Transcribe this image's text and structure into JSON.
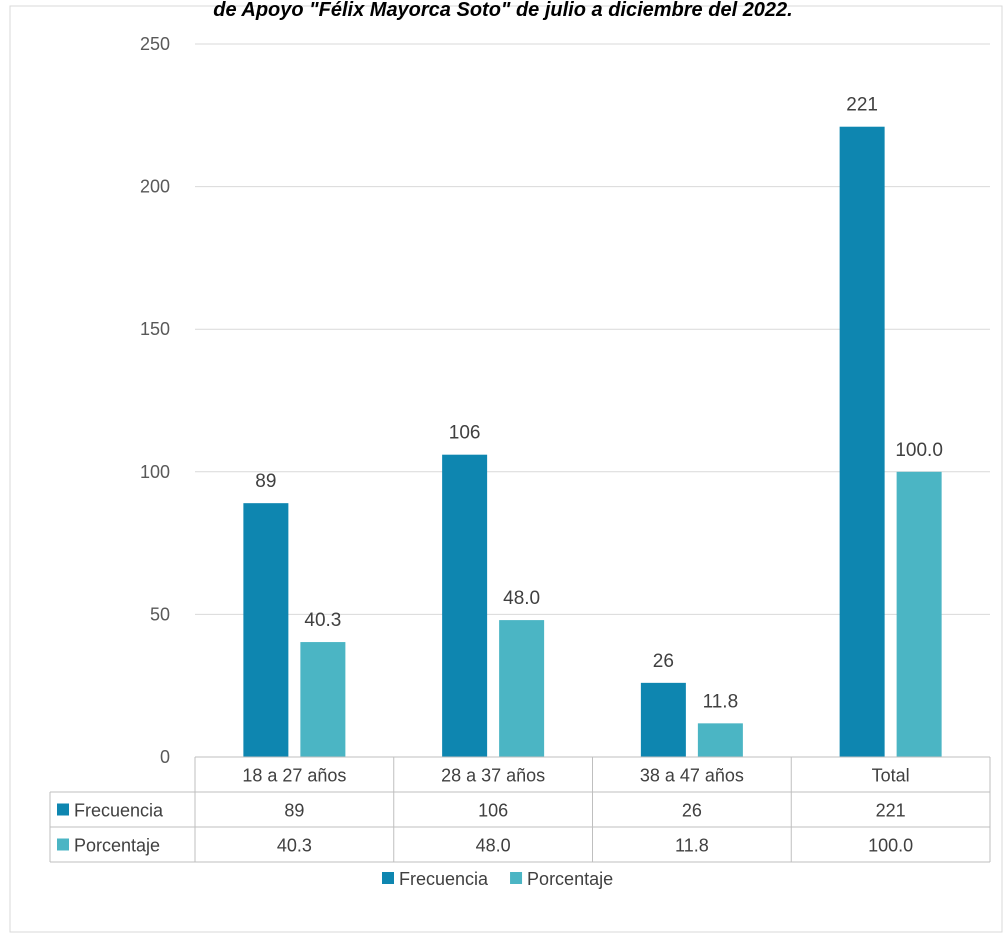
{
  "chart_data": {
    "type": "bar",
    "title": "de Apoyo \"Félix Mayorca Soto\" de julio a diciembre del 2022.",
    "categories": [
      "18 a 27 años",
      "28 a 37 años",
      "38 a 47 años",
      "Total"
    ],
    "series": [
      {
        "name": "Frecuencia",
        "values": [
          89,
          106,
          26,
          221
        ],
        "labels": [
          "89",
          "106",
          "26",
          "221"
        ],
        "color": "#0e86b0"
      },
      {
        "name": "Porcentaje",
        "values": [
          40.3,
          48.0,
          11.8,
          100.0
        ],
        "labels": [
          "40.3",
          "48.0",
          "11.8",
          "100.0"
        ],
        "color": "#4bb5c4"
      }
    ],
    "ylim": [
      0,
      250
    ],
    "yticks": [
      0,
      50,
      100,
      150,
      200,
      250
    ],
    "grid": true,
    "data_table": true,
    "legend_position": "bottom",
    "xlabel": "",
    "ylabel": ""
  }
}
